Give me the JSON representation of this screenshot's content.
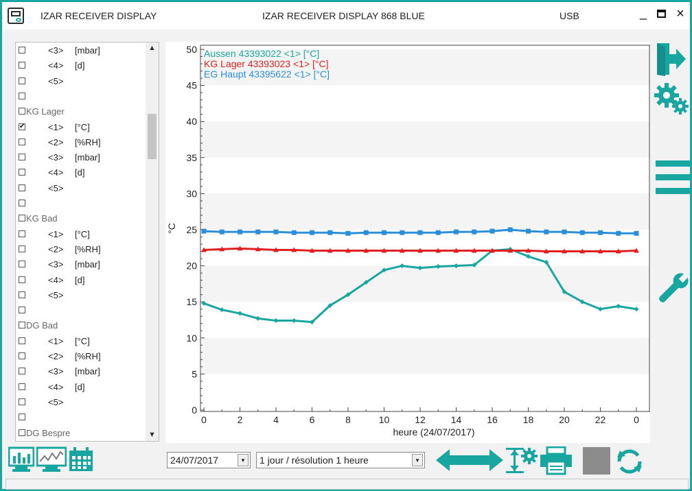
{
  "window": {
    "title": "IZAR RECEIVER DISPLAY",
    "center_title": "IZAR RECEIVER DISPLAY 868   BLUE",
    "connection": "USB",
    "min_glyph": "_",
    "close_glyph": "×"
  },
  "accent_color": "#1aa6a0",
  "channel_list": {
    "rows": [
      {
        "type": "channel",
        "checked": false,
        "idx": "<3>",
        "unit": "[mbar]"
      },
      {
        "type": "channel",
        "checked": false,
        "idx": "<4>",
        "unit": "[d]"
      },
      {
        "type": "channel",
        "checked": false,
        "idx": "<5>",
        "unit": ""
      },
      {
        "type": "blank",
        "checked": false
      },
      {
        "type": "group",
        "checked": false,
        "label": "KG Lager"
      },
      {
        "type": "channel",
        "checked": true,
        "idx": "<1>",
        "unit": "[°C]"
      },
      {
        "type": "channel",
        "checked": false,
        "idx": "<2>",
        "unit": "[%RH]"
      },
      {
        "type": "channel",
        "checked": false,
        "idx": "<3>",
        "unit": "[mbar]"
      },
      {
        "type": "channel",
        "checked": false,
        "idx": "<4>",
        "unit": "[d]"
      },
      {
        "type": "channel",
        "checked": false,
        "idx": "<5>",
        "unit": ""
      },
      {
        "type": "blank",
        "checked": false
      },
      {
        "type": "group",
        "checked": false,
        "label": "KG Bad"
      },
      {
        "type": "channel",
        "checked": false,
        "idx": "<1>",
        "unit": "[°C]"
      },
      {
        "type": "channel",
        "checked": false,
        "idx": "<2>",
        "unit": "[%RH]"
      },
      {
        "type": "channel",
        "checked": false,
        "idx": "<3>",
        "unit": "[mbar]"
      },
      {
        "type": "channel",
        "checked": false,
        "idx": "<4>",
        "unit": "[d]"
      },
      {
        "type": "channel",
        "checked": false,
        "idx": "<5>",
        "unit": ""
      },
      {
        "type": "blank",
        "checked": false
      },
      {
        "type": "group",
        "checked": false,
        "label": "DG Bad"
      },
      {
        "type": "channel",
        "checked": false,
        "idx": "<1>",
        "unit": "[°C]"
      },
      {
        "type": "channel",
        "checked": false,
        "idx": "<2>",
        "unit": "[%RH]"
      },
      {
        "type": "channel",
        "checked": false,
        "idx": "<3>",
        "unit": "[mbar]"
      },
      {
        "type": "channel",
        "checked": false,
        "idx": "<4>",
        "unit": "[d]"
      },
      {
        "type": "channel",
        "checked": false,
        "idx": "<5>",
        "unit": ""
      },
      {
        "type": "blank",
        "checked": false
      },
      {
        "type": "group",
        "checked": false,
        "label": "DG Bespre"
      }
    ],
    "check_glyph": "✔"
  },
  "icons": {
    "exit": "exit-door-icon",
    "settings": "gears-icon",
    "menu": "hamburger-menu-icon",
    "tools": "wrench-icon",
    "bar_chart": "bar-chart-view-icon",
    "line_chart": "line-chart-view-icon",
    "calendar": "calendar-icon",
    "arrow_left": "arrow-left-icon",
    "arrow_right": "arrow-right-icon",
    "scale_settings": "axis-scale-settings-icon",
    "print": "printer-icon",
    "stop": "stop-square-icon",
    "refresh": "refresh-icon"
  },
  "controls": {
    "date_value": "24/07/2017",
    "range_value": "1 jour / résolution 1 heure",
    "dropdown_glyph": "▾"
  },
  "chart_data": {
    "type": "line",
    "xlabel": "heure  (24/07/2017)",
    "ylabel": "°C",
    "x_ticks": [
      "0",
      "2",
      "4",
      "6",
      "8",
      "10",
      "12",
      "14",
      "16",
      "18",
      "20",
      "22",
      "0"
    ],
    "y_ticks": [
      "0",
      "5",
      "10",
      "15",
      "20",
      "25",
      "30",
      "35",
      "40",
      "45",
      "50"
    ],
    "ylim": [
      0,
      50
    ],
    "x": [
      0,
      1,
      2,
      3,
      4,
      5,
      6,
      7,
      8,
      9,
      10,
      11,
      12,
      13,
      14,
      15,
      16,
      17,
      18,
      19,
      20,
      21,
      22,
      23,
      24
    ],
    "grid": "horizontal alternating bands",
    "legend_position": "top-left",
    "series": [
      {
        "name": "Aussen  43393022  <1>  [°C]",
        "color": "#1aa6a0",
        "marker": "diamond",
        "values": [
          14.8,
          13.9,
          13.4,
          12.7,
          12.4,
          12.4,
          12.2,
          14.5,
          16.0,
          17.7,
          19.4,
          20.0,
          19.7,
          19.9,
          20.0,
          20.1,
          22.1,
          22.3,
          21.3,
          20.5,
          16.4,
          15.0,
          14.0,
          14.4,
          14.0
        ]
      },
      {
        "name": "KG Lager  43393023  <1>  [°C]",
        "color": "#e02020",
        "marker": "triangle",
        "values": [
          22.2,
          22.3,
          22.4,
          22.3,
          22.2,
          22.2,
          22.1,
          22.1,
          22.1,
          22.1,
          22.1,
          22.1,
          22.1,
          22.1,
          22.1,
          22.1,
          22.1,
          22.1,
          22.1,
          22.0,
          22.0,
          22.0,
          22.0,
          22.0,
          22.1
        ]
      },
      {
        "name": "EG Haupt  43395622  <1>  [°C]",
        "color": "#2a8fd8",
        "marker": "square",
        "values": [
          24.8,
          24.7,
          24.7,
          24.7,
          24.7,
          24.6,
          24.6,
          24.6,
          24.5,
          24.6,
          24.6,
          24.6,
          24.6,
          24.6,
          24.7,
          24.7,
          24.8,
          25.0,
          24.8,
          24.7,
          24.7,
          24.6,
          24.6,
          24.5,
          24.5
        ]
      }
    ]
  }
}
